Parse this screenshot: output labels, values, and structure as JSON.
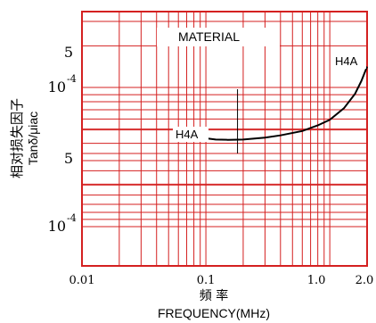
{
  "chart_data": {
    "type": "line",
    "xscale": "log",
    "yscale": "log",
    "xlim": [
      0.01,
      2.0
    ],
    "x_ticks": [
      "0.01",
      "0.1",
      "1.0",
      "2.0"
    ],
    "x_tick_values": [
      0.01,
      0.1,
      1.0,
      2.0
    ],
    "xlabel_cn": "頻 率",
    "xlabel": "FREQUENCY(MHz)",
    "ylabel_cn": "相对损失因子",
    "ylabel": "Tanδ/μiac",
    "y_ticks": [
      {
        "mantissa": "5",
        "exponent": ""
      },
      {
        "mantissa": "10",
        "exponent": "-4"
      },
      {
        "mantissa": "5",
        "exponent": ""
      },
      {
        "mantissa": "10",
        "exponent": "-4"
      }
    ],
    "legend_title": "MATERIAL",
    "series": [
      {
        "name": "H4A",
        "label_start": "H4A",
        "label_end": "H4A",
        "color": "#000000",
        "points": [
          [
            0.1,
            1.0
          ],
          [
            0.12,
            0.98
          ],
          [
            0.15,
            0.975
          ],
          [
            0.2,
            0.98
          ],
          [
            0.3,
            1.01
          ],
          [
            0.4,
            1.05
          ],
          [
            0.6,
            1.13
          ],
          [
            0.8,
            1.24
          ],
          [
            1.0,
            1.36
          ],
          [
            1.3,
            1.65
          ],
          [
            1.6,
            2.1
          ],
          [
            1.8,
            2.6
          ],
          [
            2.0,
            3.3
          ]
        ]
      }
    ],
    "grid": true,
    "grid_color": "#d42020",
    "marker_line_x": 0.18
  }
}
